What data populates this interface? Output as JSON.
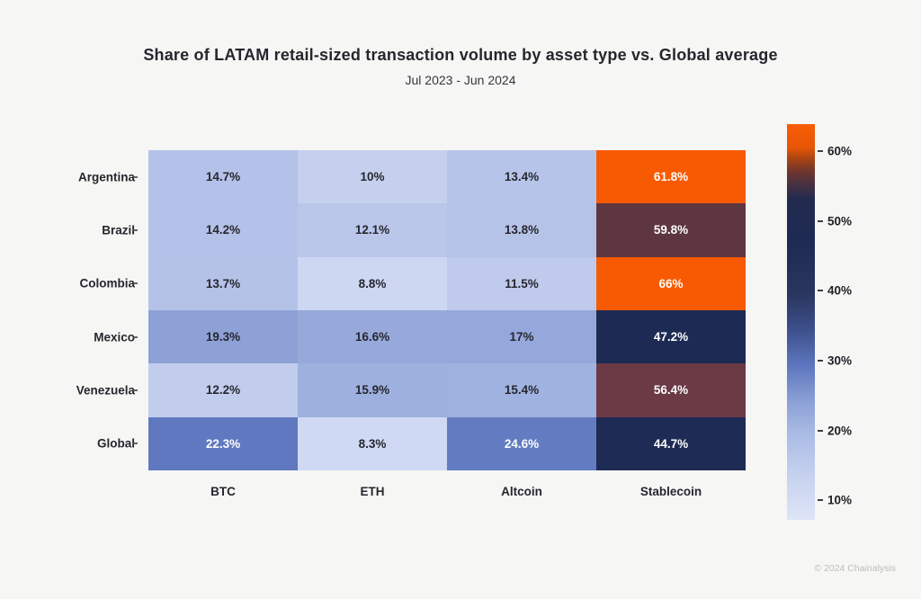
{
  "title": "Share of LATAM retail-sized transaction volume by asset type vs. Global average",
  "subtitle": "Jul 2023 - Jun 2024",
  "footer": "© 2024 Chainalysis",
  "chart_data": {
    "type": "heatmap",
    "title": "Share of LATAM retail-sized transaction volume by asset type vs. Global average",
    "subtitle": "Jul 2023 - Jun 2024",
    "rows": [
      "Argentina",
      "Brazil",
      "Colombia",
      "Mexico",
      "Venezuela",
      "Global"
    ],
    "columns": [
      "BTC",
      "ETH",
      "Altcoin",
      "Stablecoin"
    ],
    "values": [
      [
        14.7,
        10,
        13.4,
        61.8
      ],
      [
        14.2,
        12.1,
        13.8,
        59.8
      ],
      [
        13.7,
        8.8,
        11.5,
        66
      ],
      [
        19.3,
        16.6,
        17,
        47.2
      ],
      [
        12.2,
        15.9,
        15.4,
        56.4
      ],
      [
        22.3,
        8.3,
        24.6,
        44.7
      ]
    ],
    "labels": [
      [
        "14.7%",
        "10%",
        "13.4%",
        "61.8%"
      ],
      [
        "14.2%",
        "12.1%",
        "13.8%",
        "59.8%"
      ],
      [
        "13.7%",
        "8.8%",
        "11.5%",
        "66%"
      ],
      [
        "19.3%",
        "16.6%",
        "17%",
        "47.2%"
      ],
      [
        "12.2%",
        "15.9%",
        "15.4%",
        "56.4%"
      ],
      [
        "22.3%",
        "8.3%",
        "24.6%",
        "44.7%"
      ]
    ],
    "cell_colors": [
      [
        "#b4c1e8",
        "#c5d0ef",
        "#b7c4e9",
        "#f85a02"
      ],
      [
        "#b4c1e8",
        "#bac6ea",
        "#b6c3e8",
        "#5e3640"
      ],
      [
        "#b5c2e8",
        "#cdd7f2",
        "#bfcaec",
        "#f85a02"
      ],
      [
        "#8da1d7",
        "#97a9db",
        "#95a8db",
        "#1d2a54"
      ],
      [
        "#c2cdee",
        "#9eb0de",
        "#a0b2df",
        "#6b3a45"
      ],
      [
        "#5f78bf",
        "#cfd9f3",
        "#637cc1",
        "#1e2b55"
      ]
    ],
    "colorbar": {
      "tick_labels": [
        "10%",
        "20%",
        "30%",
        "40%",
        "50%",
        "60%"
      ],
      "tick_values": [
        10,
        20,
        30,
        40,
        50,
        60
      ],
      "scale_min": 7.2,
      "scale_max": 63.9,
      "gradient_stops": [
        [
          0,
          "#dee5f7"
        ],
        [
          10,
          "#c9d4f0"
        ],
        [
          22,
          "#a9bae4"
        ],
        [
          30,
          "#8ba0d6"
        ],
        [
          39,
          "#5d76bf"
        ],
        [
          48,
          "#3d508c"
        ],
        [
          57,
          "#2a3560"
        ],
        [
          70,
          "#1e2a54"
        ],
        [
          81,
          "#222a50"
        ],
        [
          85,
          "#4a3140"
        ],
        [
          88,
          "#6f362e"
        ],
        [
          91,
          "#a34314"
        ],
        [
          94,
          "#e75607"
        ],
        [
          100,
          "#f95d06"
        ]
      ]
    },
    "legend_position": "right",
    "grid": false,
    "text_color_dark": "#26262e",
    "text_color_light": "#fdfdfd"
  }
}
